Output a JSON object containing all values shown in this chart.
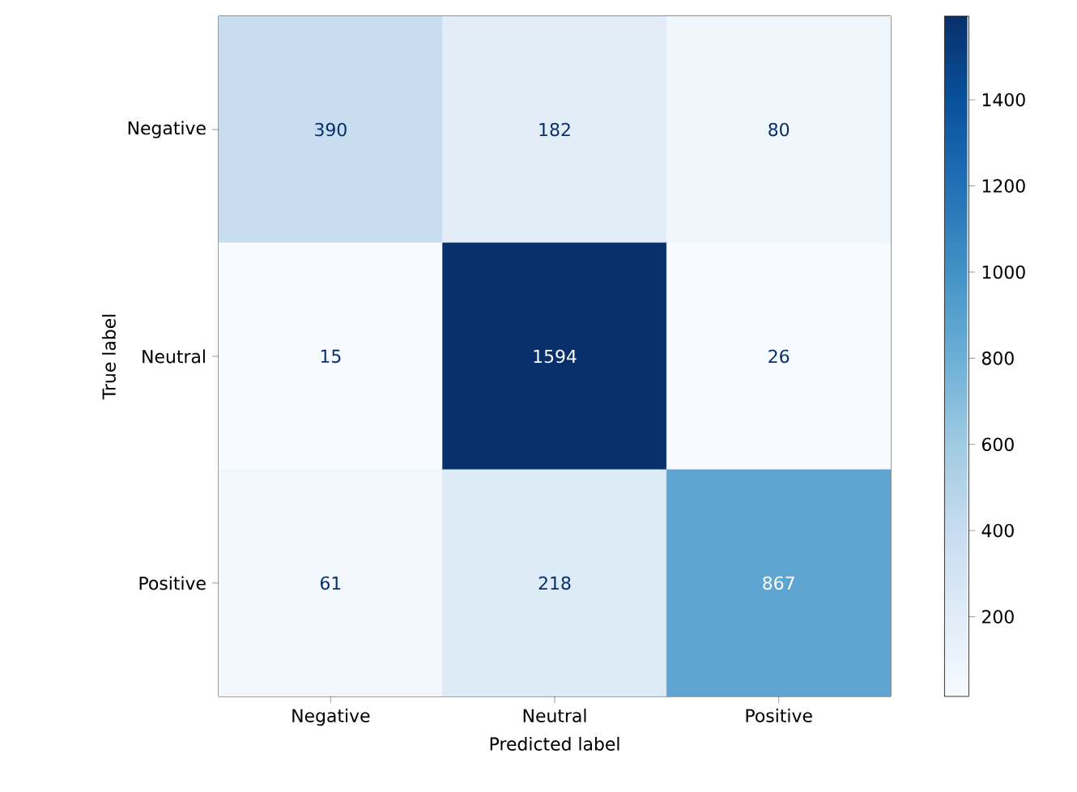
{
  "chart_data": {
    "type": "heatmap",
    "xlabel": "Predicted label",
    "ylabel": "True label",
    "categories": [
      "Negative",
      "Neutral",
      "Positive"
    ],
    "y_categories": [
      "Negative",
      "Neutral",
      "Positive"
    ],
    "cells": [
      [
        390,
        182,
        80
      ],
      [
        15,
        1594,
        26
      ],
      [
        61,
        218,
        867
      ]
    ],
    "clim": [
      15,
      1594
    ],
    "data_labels": true,
    "cticks": [
      200,
      400,
      600,
      800,
      1000,
      1200,
      1400
    ]
  }
}
